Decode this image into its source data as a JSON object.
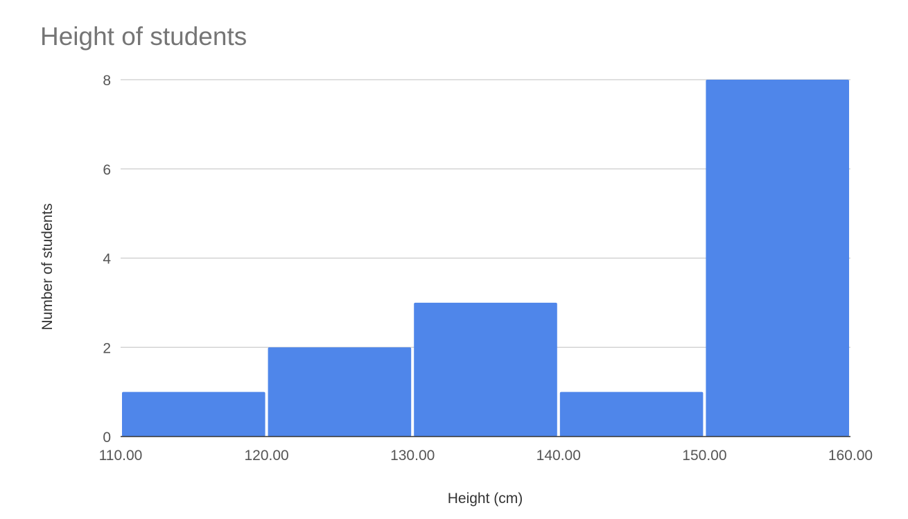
{
  "chart_data": {
    "type": "bar",
    "title": "Height of students",
    "xlabel": "Height (cm)",
    "ylabel": "Number of students",
    "bins": [
      {
        "from": 110,
        "to": 120,
        "value": 1
      },
      {
        "from": 120,
        "to": 130,
        "value": 2
      },
      {
        "from": 130,
        "to": 140,
        "value": 3
      },
      {
        "from": 140,
        "to": 150,
        "value": 1
      },
      {
        "from": 150,
        "to": 160,
        "value": 8
      }
    ],
    "x_ticks": [
      "110.00",
      "120.00",
      "130.00",
      "140.00",
      "150.00",
      "160.00"
    ],
    "y_ticks": [
      "0",
      "2",
      "4",
      "6",
      "8"
    ],
    "xlim": [
      110,
      160
    ],
    "ylim": [
      0,
      8
    ],
    "grid": true,
    "legend": "none",
    "colors": {
      "bar": "#4f86ea",
      "grid": "#cccccc",
      "axis": "#333333",
      "text": "#555555",
      "title": "#757575"
    }
  }
}
